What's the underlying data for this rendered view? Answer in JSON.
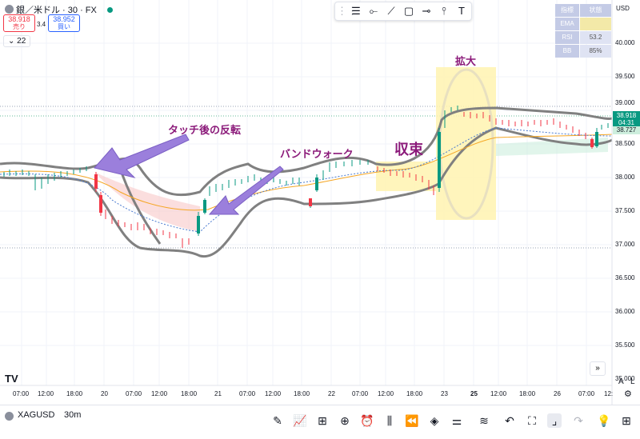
{
  "header": {
    "symbol_title": "銀／米ドル · 30 · FX",
    "sell_price": "38.918",
    "sell_label": "売り",
    "spread": "3.4",
    "buy_price": "38.952",
    "buy_label": "買い",
    "indicator_count": "22"
  },
  "price_axis": {
    "currency": "USD",
    "ticks": [
      "40.000",
      "39.500",
      "39.000",
      "38.500",
      "38.000",
      "37.500",
      "37.000",
      "36.500",
      "36.000",
      "35.500",
      "35.000"
    ],
    "last_price": "38.918",
    "countdown": "04:31",
    "ema_value": "38.727"
  },
  "time_axis": {
    "labels": [
      "07:00",
      "12:00",
      "18:00",
      "20",
      "07:00",
      "12:00",
      "18:00",
      "21",
      "07:00",
      "12:00",
      "18:00",
      "22",
      "07:00",
      "12:00",
      "18:00",
      "23",
      "25",
      "12:00",
      "18:00",
      "26",
      "07:00",
      "12:"
    ]
  },
  "indicator_table": {
    "header": [
      "指標",
      "状態"
    ],
    "rows": [
      [
        "EMA",
        ""
      ],
      [
        "RSI",
        "53.2"
      ],
      [
        "BB",
        "85%"
      ]
    ]
  },
  "annotations": {
    "touch_reverse": "タッチ後の反転",
    "band_walk": "バンドウォーク",
    "squeeze": "収束",
    "expand": "拡大"
  },
  "colors": {
    "annotation_text": "#8b1a7a",
    "arrow_fill": "#9b7fdc",
    "up_candle": "#089981",
    "down_candle": "#f23645",
    "band_line": "#808080",
    "highlight_yellow": "#fff3b0"
  },
  "bottom": {
    "symbol": "XAGUSD",
    "interval": "30m",
    "auto_label": "A",
    "log_label": "L"
  },
  "tradingview_logo": "TV"
}
